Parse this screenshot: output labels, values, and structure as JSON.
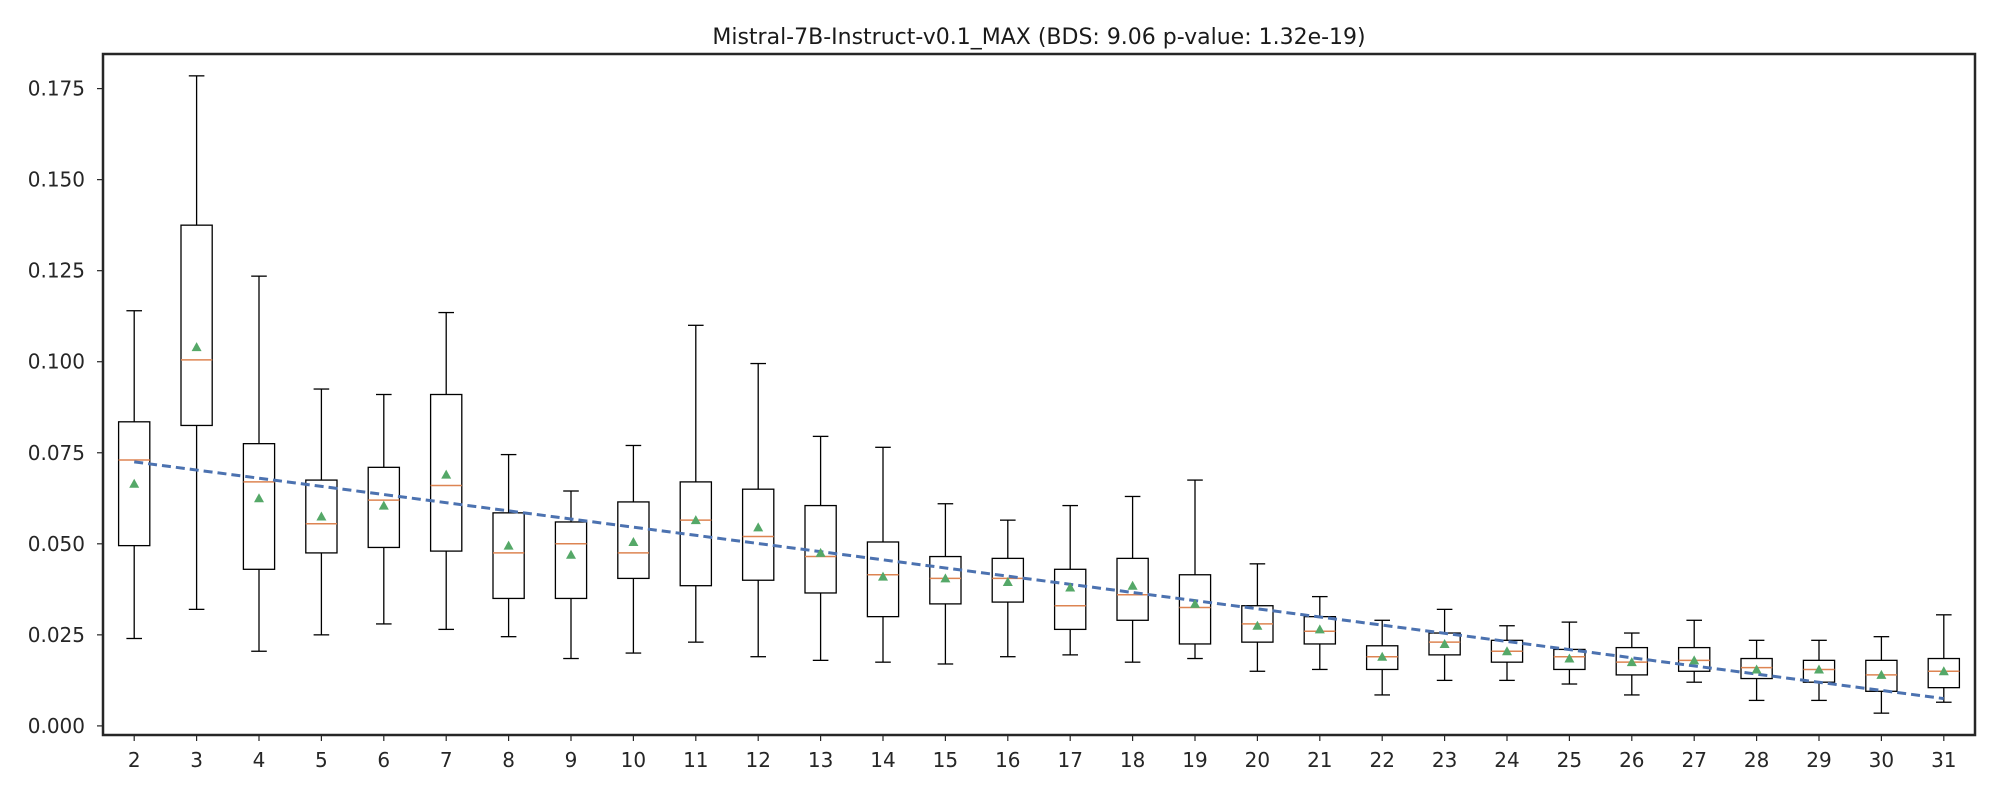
{
  "chart_data": {
    "type": "box",
    "title": "Mistral-7B-Instruct-v0.1_MAX (BDS: 9.06 p-value: 1.32e-19)",
    "xlabel": "",
    "ylabel": "",
    "categories": [
      "2",
      "3",
      "4",
      "5",
      "6",
      "7",
      "8",
      "9",
      "10",
      "11",
      "12",
      "13",
      "14",
      "15",
      "16",
      "17",
      "18",
      "19",
      "20",
      "21",
      "22",
      "23",
      "24",
      "25",
      "26",
      "27",
      "28",
      "29",
      "30",
      "31"
    ],
    "boxes": [
      {
        "whisker_low": 0.024,
        "q1": 0.0495,
        "median": 0.073,
        "q3": 0.0835,
        "whisker_high": 0.114,
        "mean": 0.0665
      },
      {
        "whisker_low": 0.032,
        "q1": 0.0825,
        "median": 0.1005,
        "q3": 0.1375,
        "whisker_high": 0.1785,
        "mean": 0.104
      },
      {
        "whisker_low": 0.0205,
        "q1": 0.043,
        "median": 0.067,
        "q3": 0.0775,
        "whisker_high": 0.1235,
        "mean": 0.0625
      },
      {
        "whisker_low": 0.025,
        "q1": 0.0475,
        "median": 0.0555,
        "q3": 0.0675,
        "whisker_high": 0.0925,
        "mean": 0.0575
      },
      {
        "whisker_low": 0.028,
        "q1": 0.049,
        "median": 0.062,
        "q3": 0.071,
        "whisker_high": 0.091,
        "mean": 0.0605
      },
      {
        "whisker_low": 0.0265,
        "q1": 0.048,
        "median": 0.066,
        "q3": 0.091,
        "whisker_high": 0.1135,
        "mean": 0.069
      },
      {
        "whisker_low": 0.0245,
        "q1": 0.035,
        "median": 0.0475,
        "q3": 0.0585,
        "whisker_high": 0.0745,
        "mean": 0.0495
      },
      {
        "whisker_low": 0.0185,
        "q1": 0.035,
        "median": 0.05,
        "q3": 0.056,
        "whisker_high": 0.0645,
        "mean": 0.047
      },
      {
        "whisker_low": 0.02,
        "q1": 0.0405,
        "median": 0.0475,
        "q3": 0.0615,
        "whisker_high": 0.077,
        "mean": 0.0505
      },
      {
        "whisker_low": 0.023,
        "q1": 0.0385,
        "median": 0.0565,
        "q3": 0.067,
        "whisker_high": 0.11,
        "mean": 0.0565
      },
      {
        "whisker_low": 0.019,
        "q1": 0.04,
        "median": 0.052,
        "q3": 0.065,
        "whisker_high": 0.0995,
        "mean": 0.0545
      },
      {
        "whisker_low": 0.018,
        "q1": 0.0365,
        "median": 0.0465,
        "q3": 0.0605,
        "whisker_high": 0.0795,
        "mean": 0.0475
      },
      {
        "whisker_low": 0.0175,
        "q1": 0.03,
        "median": 0.0415,
        "q3": 0.0505,
        "whisker_high": 0.0765,
        "mean": 0.041
      },
      {
        "whisker_low": 0.017,
        "q1": 0.0335,
        "median": 0.0405,
        "q3": 0.0465,
        "whisker_high": 0.061,
        "mean": 0.0405
      },
      {
        "whisker_low": 0.019,
        "q1": 0.034,
        "median": 0.0405,
        "q3": 0.046,
        "whisker_high": 0.0565,
        "mean": 0.0395
      },
      {
        "whisker_low": 0.0195,
        "q1": 0.0265,
        "median": 0.033,
        "q3": 0.043,
        "whisker_high": 0.0605,
        "mean": 0.038
      },
      {
        "whisker_low": 0.0175,
        "q1": 0.029,
        "median": 0.036,
        "q3": 0.046,
        "whisker_high": 0.063,
        "mean": 0.0385
      },
      {
        "whisker_low": 0.0185,
        "q1": 0.0225,
        "median": 0.0325,
        "q3": 0.0415,
        "whisker_high": 0.0675,
        "mean": 0.0335
      },
      {
        "whisker_low": 0.015,
        "q1": 0.023,
        "median": 0.028,
        "q3": 0.033,
        "whisker_high": 0.0445,
        "mean": 0.0275
      },
      {
        "whisker_low": 0.0155,
        "q1": 0.0225,
        "median": 0.026,
        "q3": 0.03,
        "whisker_high": 0.0355,
        "mean": 0.0265
      },
      {
        "whisker_low": 0.0085,
        "q1": 0.0155,
        "median": 0.019,
        "q3": 0.022,
        "whisker_high": 0.029,
        "mean": 0.019
      },
      {
        "whisker_low": 0.0125,
        "q1": 0.0195,
        "median": 0.023,
        "q3": 0.0255,
        "whisker_high": 0.032,
        "mean": 0.0225
      },
      {
        "whisker_low": 0.0125,
        "q1": 0.0175,
        "median": 0.0205,
        "q3": 0.0235,
        "whisker_high": 0.0275,
        "mean": 0.0205
      },
      {
        "whisker_low": 0.0115,
        "q1": 0.0155,
        "median": 0.019,
        "q3": 0.021,
        "whisker_high": 0.0285,
        "mean": 0.0185
      },
      {
        "whisker_low": 0.0085,
        "q1": 0.014,
        "median": 0.0175,
        "q3": 0.0215,
        "whisker_high": 0.0255,
        "mean": 0.0175
      },
      {
        "whisker_low": 0.012,
        "q1": 0.015,
        "median": 0.018,
        "q3": 0.0215,
        "whisker_high": 0.029,
        "mean": 0.018
      },
      {
        "whisker_low": 0.007,
        "q1": 0.013,
        "median": 0.016,
        "q3": 0.0185,
        "whisker_high": 0.0235,
        "mean": 0.0155
      },
      {
        "whisker_low": 0.007,
        "q1": 0.012,
        "median": 0.0155,
        "q3": 0.018,
        "whisker_high": 0.0235,
        "mean": 0.0155
      },
      {
        "whisker_low": 0.0035,
        "q1": 0.0095,
        "median": 0.014,
        "q3": 0.018,
        "whisker_high": 0.0245,
        "mean": 0.014
      },
      {
        "whisker_low": 0.0065,
        "q1": 0.0105,
        "median": 0.015,
        "q3": 0.0185,
        "whisker_high": 0.0305,
        "mean": 0.015
      }
    ],
    "trend_line": {
      "start": 0.0725,
      "end": 0.0075,
      "style": "dashed"
    },
    "ylim": [
      -0.0025,
      0.1845
    ],
    "yticks": [
      "0.000",
      "0.025",
      "0.050",
      "0.075",
      "0.100",
      "0.125",
      "0.150",
      "0.175"
    ],
    "grid": false,
    "colors": {
      "box": "#000000",
      "median": "#dd8452",
      "mean": "#55a868",
      "trend": "#4c72b0",
      "frame": "#262626"
    }
  }
}
